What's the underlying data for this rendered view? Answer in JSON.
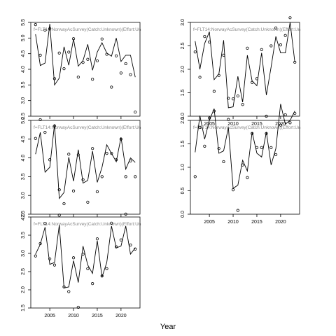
{
  "figure": {
    "xlabel": "Year"
  },
  "chart_data": [
    {
      "type": "line",
      "title": "f=FLT14:NorwayAcSurvey(Catch:Unknown)(Effort:Un",
      "xlabel": "Year",
      "ylabel": "",
      "xlim": [
        2001,
        2024
      ],
      "ylim": [
        2.5,
        5.5
      ],
      "x_ticks": [
        2005,
        2010,
        2015,
        2020
      ],
      "x_tick_labels": [],
      "y_ticks": [
        2.5,
        3.0,
        3.5,
        4.0,
        4.5,
        5.0,
        5.5
      ],
      "y_tick_labels": [
        "2.5",
        "3.0",
        "3.5",
        "4.0",
        "4.5",
        "5.0",
        "5.5"
      ],
      "grid": false,
      "series": [
        {
          "kind": "line",
          "color": "#000000",
          "x": [
            2002,
            2003,
            2004,
            2005,
            2006,
            2007,
            2008,
            2009,
            2010,
            2011,
            2012,
            2013,
            2014,
            2015,
            2016,
            2017,
            2018,
            2019,
            2020,
            2021,
            2022,
            2023
          ],
          "y": [
            5.12,
            4.12,
            4.2,
            5.45,
            3.5,
            3.72,
            4.72,
            4.13,
            4.97,
            4.1,
            4.28,
            4.8,
            3.97,
            4.55,
            4.85,
            4.52,
            4.42,
            5.0,
            4.25,
            4.45,
            4.45,
            3.75
          ]
        },
        {
          "kind": "points",
          "color": "#000000",
          "x": [
            2002,
            2003,
            2004,
            2005,
            2006,
            2007,
            2008,
            2009,
            2010,
            2011,
            2012,
            2013,
            2014,
            2015,
            2016,
            2017,
            2018,
            2019,
            2020,
            2021,
            2022,
            2023
          ],
          "y": [
            5.43,
            4.45,
            5.25,
            5.3,
            3.7,
            4.52,
            4.02,
            4.55,
            4.98,
            3.75,
            4.22,
            4.32,
            3.68,
            4.27,
            4.97,
            4.48,
            3.43,
            4.43,
            3.88,
            4.18,
            3.83,
            2.63
          ]
        }
      ]
    },
    {
      "type": "line",
      "title": "f=FLT14:NorwayAcSurvey(Catch:Unknown)(Effort:Un",
      "xlabel": "Year",
      "ylabel": "",
      "xlim": [
        2001,
        2024
      ],
      "ylim": [
        1.0,
        3.0
      ],
      "x_ticks": [
        2005,
        2010,
        2015,
        2020
      ],
      "x_tick_labels": [
        "2005",
        "2010",
        "2015",
        "2020"
      ],
      "y_ticks": [
        1.0,
        1.5,
        2.0,
        2.5,
        3.0
      ],
      "y_tick_labels": [
        "1.0",
        "1.5",
        "2.0",
        "2.5",
        "3.0"
      ],
      "grid": false,
      "series": [
        {
          "kind": "line",
          "color": "#000000",
          "x": [
            2002,
            2003,
            2004,
            2005,
            2006,
            2007,
            2008,
            2009,
            2010,
            2011,
            2012,
            2013,
            2014,
            2015,
            2016,
            2017,
            2018,
            2019,
            2020,
            2021,
            2022,
            2023
          ],
          "y": [
            2.6,
            2.0,
            2.55,
            2.8,
            1.78,
            1.9,
            2.62,
            1.18,
            1.2,
            1.85,
            1.3,
            2.3,
            1.75,
            1.65,
            2.35,
            1.45,
            2.05,
            2.7,
            2.35,
            2.35,
            3.0,
            2.15
          ]
        },
        {
          "kind": "points",
          "color": "#000000",
          "x": [
            2002,
            2003,
            2004,
            2005,
            2006,
            2007,
            2008,
            2009,
            2010,
            2011,
            2012,
            2013,
            2014,
            2015,
            2016,
            2017,
            2018,
            2019,
            2020,
            2021,
            2022,
            2023
          ],
          "y": [
            2.37,
            1.83,
            2.7,
            2.58,
            1.53,
            1.87,
            2.3,
            1.38,
            1.37,
            1.43,
            1.25,
            2.45,
            1.72,
            1.8,
            2.42,
            1.0,
            2.5,
            2.88,
            2.52,
            2.72,
            3.1,
            2.15
          ]
        }
      ]
    },
    {
      "type": "line",
      "title": "f=FLT14:NorwayAcSurvey(Catch:Unknown)(Effort:Un",
      "xlabel": "Year",
      "ylabel": "",
      "xlim": [
        2001,
        2024
      ],
      "ylim": [
        2.5,
        5.0
      ],
      "x_ticks": [
        2005,
        2010,
        2015,
        2020
      ],
      "x_tick_labels": [],
      "y_ticks": [
        2.5,
        3.0,
        3.5,
        4.0,
        4.5,
        5.0
      ],
      "y_tick_labels": [
        "2.5",
        "3.0",
        "3.5",
        "4.0",
        "4.5",
        "5.0"
      ],
      "grid": false,
      "series": [
        {
          "kind": "line",
          "color": "#000000",
          "x": [
            2002,
            2003,
            2004,
            2005,
            2006,
            2007,
            2008,
            2009,
            2010,
            2011,
            2012,
            2013,
            2014,
            2015,
            2016,
            2017,
            2018,
            2019,
            2020,
            2021,
            2022,
            2023
          ],
          "y": [
            4.1,
            4.68,
            3.62,
            3.75,
            4.9,
            2.92,
            3.08,
            4.02,
            3.38,
            4.22,
            3.33,
            3.4,
            4.18,
            3.35,
            3.75,
            4.35,
            4.12,
            3.9,
            4.55,
            3.7,
            4.0,
            3.88
          ]
        },
        {
          "kind": "points",
          "color": "#000000",
          "x": [
            2002,
            2003,
            2004,
            2005,
            2006,
            2007,
            2008,
            2009,
            2010,
            2011,
            2012,
            2013,
            2014,
            2015,
            2016,
            2017,
            2018,
            2019,
            2020,
            2021,
            2022,
            2023
          ],
          "y": [
            4.52,
            5.02,
            4.68,
            3.95,
            4.85,
            3.15,
            2.78,
            4.1,
            3.12,
            4.08,
            3.42,
            2.82,
            4.25,
            3.1,
            3.5,
            4.12,
            4.12,
            3.95,
            4.5,
            3.5,
            3.92,
            3.5
          ]
        }
      ]
    },
    {
      "type": "line",
      "title": "f=FLT14:NorwayAcSurvey(Catch:Unknown)(Effort:Un",
      "xlabel": "Year",
      "ylabel": "",
      "xlim": [
        2001,
        2024
      ],
      "ylim": [
        0.0,
        2.0
      ],
      "x_ticks": [
        2005,
        2010,
        2015,
        2020
      ],
      "x_tick_labels": [
        "2005",
        "2010",
        "2015",
        "2020"
      ],
      "y_ticks": [
        0.0,
        0.5,
        1.0,
        1.5,
        2.0
      ],
      "y_tick_labels": [
        "0.0",
        "0.5",
        "1.0",
        "1.5",
        "2.0"
      ],
      "grid": false,
      "series": [
        {
          "kind": "line",
          "color": "#000000",
          "x": [
            2002,
            2003,
            2004,
            2005,
            2006,
            2007,
            2008,
            2009,
            2010,
            2011,
            2012,
            2013,
            2014,
            2015,
            2016,
            2017,
            2018,
            2019,
            2020,
            2021,
            2022,
            2023
          ],
          "y": [
            1.32,
            2.1,
            1.6,
            2.0,
            2.25,
            1.3,
            1.35,
            1.85,
            0.55,
            0.62,
            1.15,
            0.92,
            1.75,
            1.3,
            1.22,
            1.75,
            1.05,
            1.4,
            2.35,
            1.92,
            2.0,
            2.2
          ]
        },
        {
          "kind": "points",
          "color": "#000000",
          "x": [
            2002,
            2003,
            2004,
            2005,
            2006,
            2007,
            2008,
            2009,
            2010,
            2011,
            2012,
            2013,
            2014,
            2015,
            2016,
            2017,
            2018,
            2019,
            2020,
            2021,
            2022,
            2023
          ],
          "y": [
            0.8,
            1.85,
            1.45,
            2.05,
            2.2,
            1.4,
            1.12,
            2.02,
            0.52,
            0.08,
            1.05,
            0.78,
            1.72,
            1.42,
            1.42,
            1.72,
            1.42,
            1.27,
            1.9,
            2.12,
            1.95,
            2.15
          ]
        }
      ]
    },
    {
      "type": "line",
      "title": "f=FLT14:NorwayAcSurvey(Catch:Unknown)(Effort:Un",
      "xlabel": "Year",
      "ylabel": "",
      "xlim": [
        2001,
        2024
      ],
      "ylim": [
        1.5,
        4.0
      ],
      "x_ticks": [
        2005,
        2010,
        2015,
        2020
      ],
      "x_tick_labels": [
        "2005",
        "2010",
        "2015",
        "2020"
      ],
      "y_ticks": [
        1.5,
        2.0,
        2.5,
        3.0,
        3.5,
        4.0
      ],
      "y_tick_labels": [
        "1.5",
        "2.0",
        "2.5",
        "3.0",
        "3.5",
        "4.0"
      ],
      "grid": false,
      "series": [
        {
          "kind": "line",
          "color": "#000000",
          "x": [
            2002,
            2003,
            2004,
            2005,
            2006,
            2007,
            2008,
            2009,
            2010,
            2011,
            2012,
            2013,
            2014,
            2015,
            2016,
            2017,
            2018,
            2019,
            2020,
            2021,
            2022,
            2023
          ],
          "y": [
            2.98,
            3.25,
            3.72,
            2.7,
            2.75,
            3.78,
            2.05,
            2.08,
            2.8,
            2.2,
            3.2,
            2.68,
            2.45,
            3.35,
            2.35,
            2.75,
            3.75,
            3.15,
            3.2,
            3.75,
            2.98,
            3.15
          ]
        },
        {
          "kind": "points",
          "color": "#000000",
          "x": [
            2002,
            2003,
            2004,
            2005,
            2006,
            2007,
            2008,
            2009,
            2010,
            2011,
            2012,
            2013,
            2014,
            2015,
            2016,
            2017,
            2018,
            2019,
            2020,
            2021,
            2022,
            2023
          ],
          "y": [
            2.93,
            3.27,
            3.82,
            2.85,
            2.68,
            4.05,
            2.08,
            1.95,
            2.88,
            1.52,
            2.98,
            2.58,
            2.17,
            3.4,
            2.38,
            2.58,
            3.83,
            3.18,
            3.37,
            4.08,
            3.23,
            3.12
          ]
        }
      ]
    }
  ]
}
